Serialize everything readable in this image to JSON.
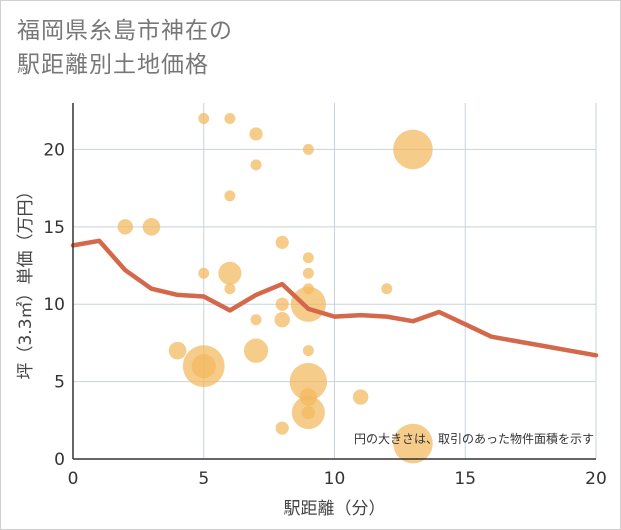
{
  "title_lines": [
    "福岡県糸島市神在の",
    "駅距離別土地価格"
  ],
  "chart_data": {
    "type": "scatter",
    "title": "福岡県糸島市神在の駅距離別土地価格",
    "xlabel": "駅距離（分）",
    "ylabel": "坪（3.3㎡）単価（万円）",
    "xlim": [
      0,
      20
    ],
    "ylim": [
      0,
      23
    ],
    "xticks": [
      0,
      5,
      10,
      15,
      20
    ],
    "yticks": [
      0,
      5,
      10,
      15,
      20
    ],
    "grid": true,
    "note": "円の大きさは、取引のあった物件面積を示す",
    "colors": {
      "bubble": "#f3b85e",
      "line": "#d4684a",
      "grid": "#c8d3de"
    },
    "points": [
      {
        "x": 5,
        "y": 22,
        "s": 1
      },
      {
        "x": 6,
        "y": 22,
        "s": 1
      },
      {
        "x": 7,
        "y": 21,
        "s": 1.2
      },
      {
        "x": 9,
        "y": 20,
        "s": 1
      },
      {
        "x": 13,
        "y": 20,
        "s": 3.6
      },
      {
        "x": 7,
        "y": 19,
        "s": 1
      },
      {
        "x": 6,
        "y": 17,
        "s": 1
      },
      {
        "x": 2,
        "y": 15,
        "s": 1.4
      },
      {
        "x": 3,
        "y": 15,
        "s": 1.6
      },
      {
        "x": 8,
        "y": 14,
        "s": 1.2
      },
      {
        "x": 9,
        "y": 13,
        "s": 1
      },
      {
        "x": 5,
        "y": 12,
        "s": 1
      },
      {
        "x": 6,
        "y": 12,
        "s": 2.1
      },
      {
        "x": 9,
        "y": 12,
        "s": 1
      },
      {
        "x": 6,
        "y": 11,
        "s": 1
      },
      {
        "x": 9,
        "y": 11,
        "s": 1
      },
      {
        "x": 12,
        "y": 11,
        "s": 1
      },
      {
        "x": 8,
        "y": 10,
        "s": 1.2
      },
      {
        "x": 9,
        "y": 10,
        "s": 3.2
      },
      {
        "x": 7,
        "y": 9,
        "s": 1
      },
      {
        "x": 8,
        "y": 9,
        "s": 1.4
      },
      {
        "x": 4,
        "y": 7,
        "s": 1.6
      },
      {
        "x": 7,
        "y": 7,
        "s": 2.2
      },
      {
        "x": 9,
        "y": 7,
        "s": 1
      },
      {
        "x": 5,
        "y": 6,
        "s": 3.8
      },
      {
        "x": 5,
        "y": 6,
        "s": 2.2
      },
      {
        "x": 9,
        "y": 5,
        "s": 3.4
      },
      {
        "x": 9,
        "y": 4,
        "s": 1.6
      },
      {
        "x": 11,
        "y": 4,
        "s": 1.4
      },
      {
        "x": 9,
        "y": 3,
        "s": 3.0
      },
      {
        "x": 9,
        "y": 3,
        "s": 1.2
      },
      {
        "x": 8,
        "y": 2,
        "s": 1.2
      },
      {
        "x": 13,
        "y": 1,
        "s": 3.6
      }
    ],
    "trend": {
      "x": [
        0,
        1,
        2,
        3,
        4,
        5,
        6,
        7,
        8,
        9,
        10,
        11,
        12,
        13,
        14,
        15,
        16,
        17,
        18,
        19,
        20
      ],
      "y": [
        13.8,
        14.1,
        12.2,
        11.0,
        10.6,
        10.5,
        9.6,
        10.6,
        11.3,
        9.7,
        9.2,
        9.3,
        9.2,
        8.9,
        9.5,
        8.7,
        7.9,
        7.6,
        7.3,
        7.0,
        6.7
      ]
    }
  }
}
